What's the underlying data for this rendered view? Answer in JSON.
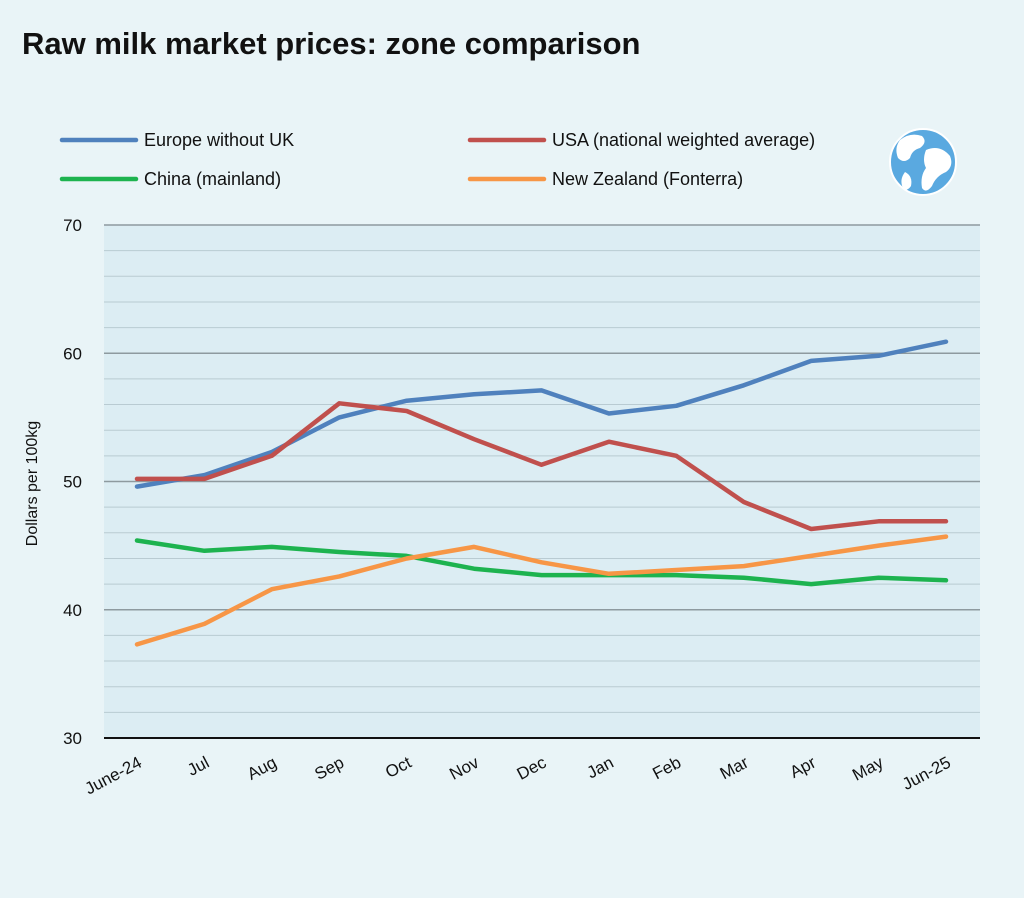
{
  "title": "Raw milk market prices: zone comparison",
  "colors": {
    "background": "#e9f4f7",
    "plot_area": "#dcedf3",
    "europe": "#4f81bd",
    "usa": "#c0504d",
    "china": "#1db34f",
    "new_zealand": "#f79646",
    "globe": "#5aa9e0"
  },
  "icon": "globe-icon",
  "chart_data": {
    "type": "line",
    "title": "Raw milk market prices: zone comparison",
    "xlabel": "",
    "ylabel": "Dollars per 100kg",
    "ylim": [
      30,
      70
    ],
    "yticks": [
      30,
      40,
      50,
      60,
      70
    ],
    "grid": "on",
    "legend": "top",
    "categories": [
      "June-24",
      "Jul",
      "Aug",
      "Sep",
      "Oct",
      "Nov",
      "Dec",
      "Jan",
      "Feb",
      "Mar",
      "Apr",
      "May",
      "Jun-25"
    ],
    "series": [
      {
        "name": "Europe without UK",
        "color_key": "europe",
        "values": [
          49.6,
          50.5,
          52.3,
          55.0,
          56.3,
          56.8,
          57.1,
          55.3,
          55.9,
          57.5,
          59.4,
          59.8,
          60.9
        ]
      },
      {
        "name": "USA (national weighted average)",
        "color_key": "usa",
        "values": [
          50.2,
          50.2,
          52.0,
          56.1,
          55.5,
          53.3,
          51.3,
          53.1,
          52.0,
          48.4,
          46.3,
          46.9,
          46.9
        ]
      },
      {
        "name": "China (mainland)",
        "color_key": "china",
        "values": [
          45.4,
          44.6,
          44.9,
          44.5,
          44.2,
          43.2,
          42.7,
          42.7,
          42.7,
          42.5,
          42.0,
          42.5,
          42.3
        ]
      },
      {
        "name": "New Zealand (Fonterra)",
        "color_key": "new_zealand",
        "values": [
          37.3,
          38.9,
          41.6,
          42.6,
          44.0,
          44.9,
          43.7,
          42.8,
          43.1,
          43.4,
          44.2,
          45.0,
          45.7
        ]
      }
    ]
  }
}
